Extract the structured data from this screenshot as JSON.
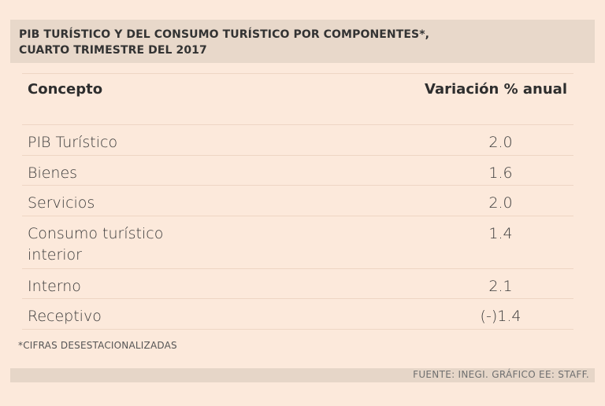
{
  "title": {
    "line1": "PIB TURÍSTICO Y DEL CONSUMO TURÍSTICO POR COMPONENTES*,",
    "line2": "CUARTO TRIMESTRE DEL 2017"
  },
  "table": {
    "headers": {
      "concept": "Concepto",
      "variation": "Variación % anual"
    },
    "rows": [
      {
        "concept": "PIB Turístico",
        "value": "2.0"
      },
      {
        "concept": "Bienes",
        "value": "1.6"
      },
      {
        "concept": "Servicios",
        "value": "2.0"
      },
      {
        "concept": "Consumo turístico\ninterior",
        "value": "1.4"
      },
      {
        "concept": "Interno",
        "value": "2.1"
      },
      {
        "concept": "Receptivo",
        "value": "(-)1.4"
      }
    ]
  },
  "footnote": "*CIFRAS DESESTACIONALIZADAS",
  "source": "FUENTE: INEGI. GRÁFICO EE: STAFF."
}
